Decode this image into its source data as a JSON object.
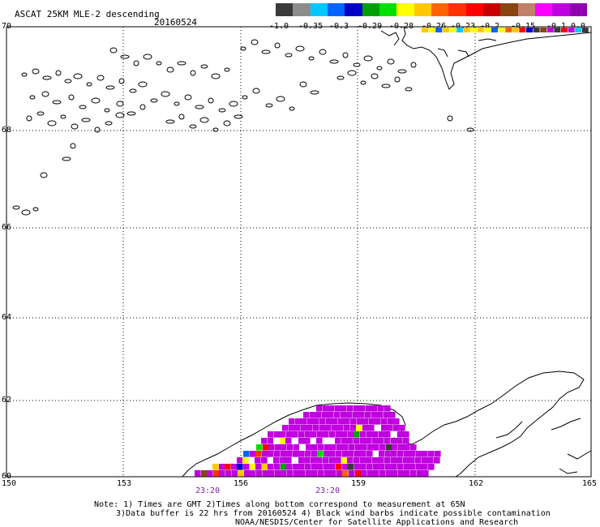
{
  "title": "ASCAT 25KM MLE-2 descending",
  "date": "20160524",
  "colorbar": {
    "colors": [
      "#3a3a3a",
      "#8c8c8c",
      "#00c8ff",
      "#0064ff",
      "#0000c8",
      "#00a000",
      "#00e000",
      "#ffff00",
      "#ffc800",
      "#ff6400",
      "#ff3200",
      "#ff0000",
      "#c80000",
      "#8b4513",
      "#c0806a",
      "#ff00ff",
      "#c000e0",
      "#9000b0"
    ],
    "labels": [
      "-1.0",
      "-0.35",
      "-0.3",
      "-0.29",
      "-0.28",
      "-0.26",
      "-0.23",
      "-0.2",
      "-0.15",
      "-0.1",
      "0.0"
    ]
  },
  "map": {
    "latitude_labels": [
      "70",
      "68",
      "66",
      "64",
      "62",
      "60"
    ],
    "longitude_labels": [
      "150",
      "153",
      "156",
      "159",
      "162",
      "165"
    ],
    "pass_times": [
      "23:20",
      "23:20"
    ],
    "icons": [
      "coastline-outline",
      "wind-barb-cell"
    ]
  },
  "notes": {
    "line1": "Note: 1) Times are GMT 2)Times along bottom correspond to measurement at 65N",
    "line2": "3)Data buffer is 22 hrs from 20160524 4) Black wind barbs indicate possible contamination",
    "line3": "NOAA/NESDIS/Center for Satellite Applications and Research"
  }
}
